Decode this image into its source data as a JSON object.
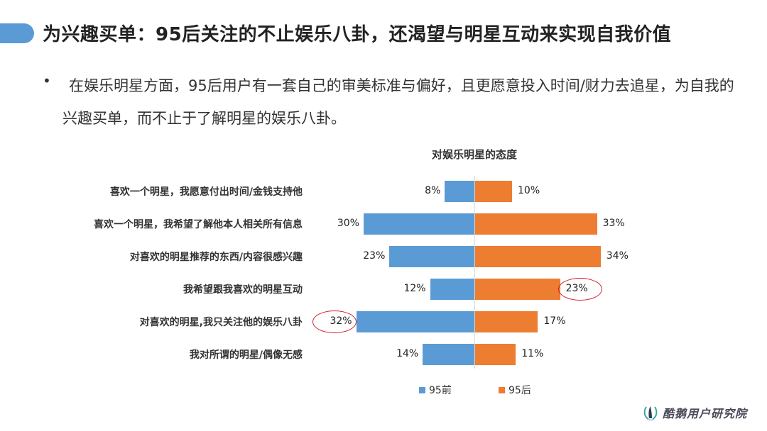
{
  "header": {
    "title": "为兴趣买单：95后关注的不止娱乐八卦，还渴望与明星互动来实现自我价值",
    "accent_color": "#5b9bd5"
  },
  "bullet": {
    "marker": "•",
    "text": "在娱乐明星方面，95后用户有一套自己的审美标准与偏好，且更愿意投入时间/财力去追星，为自我的兴趣买单，而不止于了解明星的娱乐八卦。"
  },
  "chart_data": {
    "type": "bar",
    "orientation": "horizontal-diverging",
    "title": "对娱乐明星的态度",
    "xlabel": "",
    "ylabel": "",
    "grid": false,
    "legend_position": "bottom",
    "categories": [
      "喜欢一个明星，我愿意付出时间/金钱支持他",
      "喜欢一个明星，我希望了解他本人相关所有信息",
      "对喜欢的明星推荐的东西/内容很感兴趣",
      "我希望跟我喜欢的明星互动",
      "对喜欢的明星,我只关注他的娱乐八卦",
      "我对所谓的明星/偶像无感"
    ],
    "series": [
      {
        "name": "95前",
        "color": "#5b9bd5",
        "values": [
          8,
          30,
          23,
          12,
          32,
          14
        ],
        "labels": [
          "8%",
          "30%",
          "23%",
          "12%",
          "32%",
          "14%"
        ]
      },
      {
        "name": "95后",
        "color": "#ed7d31",
        "values": [
          10,
          33,
          34,
          23,
          17,
          11
        ],
        "labels": [
          "10%",
          "33%",
          "34%",
          "23%",
          "17%",
          "11%"
        ]
      }
    ],
    "annotations": [
      {
        "type": "circle",
        "series": "95后",
        "category_index": 3,
        "label": "23%",
        "color": "#d0202a"
      },
      {
        "type": "circle",
        "series": "95前",
        "category_index": 4,
        "label": "32%",
        "color": "#d0202a"
      }
    ],
    "unit": "%"
  },
  "legend": {
    "items": [
      {
        "label": "95前",
        "color": "#5b9bd5"
      },
      {
        "label": "95后",
        "color": "#ed7d31"
      }
    ]
  },
  "footer": {
    "brand": "酷鹅用户研究院"
  }
}
